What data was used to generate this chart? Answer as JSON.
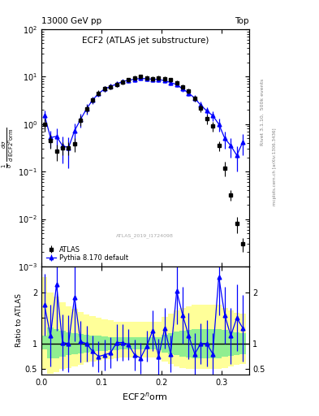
{
  "title_main": "ECF2 (ATLAS jet substructure)",
  "top_left_label": "13000 GeV pp",
  "top_right_label": "Top",
  "right_label_top": "Rivet 3.1.10,  500k events",
  "right_label_bottom": "mcplots.cern.ch [arXiv:1306.3436]",
  "watermark": "ATLAS_2019_I1724098",
  "ylabel_ratio": "Ratio to ATLAS",
  "xlabel": "ECF2$^n$orm",
  "atlas_data_x": [
    0.005,
    0.015,
    0.025,
    0.035,
    0.045,
    0.055,
    0.065,
    0.075,
    0.085,
    0.095,
    0.105,
    0.115,
    0.125,
    0.135,
    0.145,
    0.155,
    0.165,
    0.175,
    0.185,
    0.195,
    0.205,
    0.215,
    0.225,
    0.235,
    0.245,
    0.255,
    0.265,
    0.275,
    0.285,
    0.295,
    0.305,
    0.315,
    0.325,
    0.335
  ],
  "atlas_data_y": [
    1.0,
    0.45,
    0.27,
    0.32,
    0.32,
    0.38,
    1.2,
    2.1,
    3.2,
    4.5,
    5.5,
    6.0,
    6.8,
    7.8,
    8.5,
    9.5,
    10.0,
    9.5,
    9.0,
    9.5,
    9.0,
    8.5,
    7.5,
    6.0,
    5.0,
    3.5,
    2.2,
    1.3,
    0.9,
    0.35,
    0.12,
    0.032,
    0.008,
    0.003
  ],
  "atlas_data_yerr": [
    0.3,
    0.15,
    0.1,
    0.1,
    0.1,
    0.12,
    0.3,
    0.4,
    0.5,
    0.6,
    0.7,
    0.7,
    0.8,
    0.9,
    0.9,
    1.0,
    1.0,
    1.0,
    1.0,
    1.0,
    1.0,
    0.9,
    0.8,
    0.7,
    0.6,
    0.5,
    0.4,
    0.3,
    0.2,
    0.08,
    0.04,
    0.008,
    0.003,
    0.001
  ],
  "pythia_x": [
    0.005,
    0.015,
    0.025,
    0.035,
    0.045,
    0.055,
    0.065,
    0.075,
    0.085,
    0.095,
    0.105,
    0.115,
    0.125,
    0.135,
    0.145,
    0.155,
    0.165,
    0.175,
    0.185,
    0.195,
    0.205,
    0.215,
    0.225,
    0.235,
    0.245,
    0.255,
    0.265,
    0.275,
    0.285,
    0.295,
    0.305,
    0.315,
    0.325,
    0.335
  ],
  "pythia_y": [
    1.55,
    0.52,
    0.55,
    0.35,
    0.32,
    0.72,
    1.25,
    2.1,
    3.2,
    4.4,
    5.5,
    6.2,
    7.0,
    7.9,
    8.4,
    8.8,
    9.2,
    9.0,
    8.8,
    8.7,
    8.2,
    7.5,
    6.8,
    5.5,
    4.5,
    3.5,
    2.5,
    1.9,
    1.5,
    1.0,
    0.5,
    0.35,
    0.22,
    0.42
  ],
  "pythia_yerr": [
    0.4,
    0.2,
    0.25,
    0.2,
    0.2,
    0.3,
    0.4,
    0.5,
    0.55,
    0.65,
    0.7,
    0.8,
    0.85,
    0.9,
    0.95,
    1.0,
    1.0,
    1.0,
    1.0,
    1.0,
    0.95,
    0.9,
    0.8,
    0.75,
    0.65,
    0.55,
    0.45,
    0.4,
    0.35,
    0.3,
    0.2,
    0.15,
    0.12,
    0.2
  ],
  "ratio_x": [
    0.005,
    0.015,
    0.025,
    0.035,
    0.045,
    0.055,
    0.065,
    0.075,
    0.085,
    0.095,
    0.105,
    0.115,
    0.125,
    0.135,
    0.145,
    0.155,
    0.165,
    0.175,
    0.185,
    0.195,
    0.205,
    0.215,
    0.225,
    0.235,
    0.245,
    0.255,
    0.265,
    0.275,
    0.285,
    0.295,
    0.305,
    0.315,
    0.325,
    0.335
  ],
  "ratio_y": [
    1.75,
    1.15,
    2.15,
    1.02,
    1.0,
    1.9,
    1.04,
    1.0,
    0.85,
    0.75,
    0.78,
    0.82,
    1.02,
    1.02,
    0.98,
    0.78,
    0.72,
    0.95,
    1.25,
    0.75,
    1.3,
    0.8,
    2.02,
    1.55,
    1.15,
    0.8,
    1.0,
    1.0,
    0.8,
    2.3,
    1.55,
    1.15,
    1.5,
    1.3
  ],
  "ratio_yerr": [
    0.6,
    0.6,
    0.9,
    0.55,
    0.55,
    0.85,
    0.4,
    0.35,
    0.3,
    0.3,
    0.3,
    0.3,
    0.35,
    0.35,
    0.3,
    0.3,
    0.3,
    0.3,
    0.4,
    0.35,
    0.4,
    0.35,
    0.65,
    0.55,
    0.45,
    0.4,
    0.4,
    0.45,
    0.4,
    0.75,
    0.55,
    0.55,
    0.65,
    0.65
  ],
  "band_x_edges": [
    0.0,
    0.01,
    0.02,
    0.03,
    0.04,
    0.05,
    0.06,
    0.07,
    0.08,
    0.09,
    0.1,
    0.11,
    0.12,
    0.13,
    0.14,
    0.15,
    0.16,
    0.17,
    0.18,
    0.19,
    0.2,
    0.21,
    0.22,
    0.23,
    0.24,
    0.25,
    0.26,
    0.27,
    0.28,
    0.29,
    0.3,
    0.31,
    0.32,
    0.33,
    0.34
  ],
  "band_green_lo": [
    0.88,
    0.72,
    0.72,
    0.75,
    0.77,
    0.79,
    0.81,
    0.83,
    0.84,
    0.85,
    0.86,
    0.87,
    0.87,
    0.88,
    0.88,
    0.88,
    0.88,
    0.88,
    0.88,
    0.87,
    0.83,
    0.8,
    0.77,
    0.75,
    0.73,
    0.72,
    0.72,
    0.72,
    0.72,
    0.72,
    0.74,
    0.76,
    0.78,
    0.8
  ],
  "band_green_hi": [
    1.15,
    1.32,
    1.28,
    1.25,
    1.22,
    1.2,
    1.18,
    1.17,
    1.16,
    1.15,
    1.14,
    1.13,
    1.13,
    1.12,
    1.12,
    1.12,
    1.12,
    1.12,
    1.12,
    1.13,
    1.17,
    1.2,
    1.23,
    1.25,
    1.27,
    1.28,
    1.28,
    1.28,
    1.28,
    1.28,
    1.26,
    1.24,
    1.22,
    1.2
  ],
  "band_yellow_lo": [
    0.5,
    0.42,
    0.45,
    0.5,
    0.53,
    0.56,
    0.59,
    0.63,
    0.65,
    0.67,
    0.69,
    0.7,
    0.72,
    0.73,
    0.73,
    0.73,
    0.73,
    0.73,
    0.73,
    0.72,
    0.65,
    0.6,
    0.56,
    0.53,
    0.51,
    0.5,
    0.5,
    0.5,
    0.5,
    0.5,
    0.52,
    0.55,
    0.58,
    0.6
  ],
  "band_yellow_hi": [
    2.3,
    2.0,
    1.92,
    1.8,
    1.73,
    1.67,
    1.62,
    1.57,
    1.53,
    1.5,
    1.47,
    1.45,
    1.43,
    1.42,
    1.42,
    1.42,
    1.42,
    1.42,
    1.42,
    1.43,
    1.52,
    1.58,
    1.65,
    1.7,
    1.73,
    1.75,
    1.75,
    1.75,
    1.75,
    1.75,
    1.7,
    1.65,
    1.6,
    1.58
  ],
  "xlim": [
    0.0,
    0.345
  ],
  "ylim_main_log": [
    0.001,
    100
  ],
  "ylim_ratio": [
    0.4,
    2.5
  ],
  "atlas_color": "black",
  "pythia_color": "blue",
  "band_green_color": "#90EE90",
  "band_yellow_color": "#FFFF99"
}
